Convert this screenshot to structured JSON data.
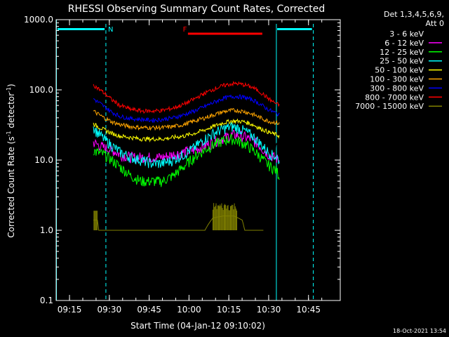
{
  "chart_data": {
    "type": "line",
    "title": "RHESSI Observing Summary Count Rates, Corrected",
    "xlabel": "Start Time (04-Jan-12 09:10:02)",
    "ylabel_main": "Corrected Count Rate (s",
    "ylabel_sup1": "-1",
    "ylabel_mid": " detector",
    "ylabel_sup2": "-1",
    "ylabel_end": ")",
    "y_scale": "log",
    "ylim": [
      0.1,
      1000
    ],
    "xlim_minutes": [
      9.96,
      46.96
    ],
    "x_ticks": [
      {
        "m": 15,
        "label": "09:15"
      },
      {
        "m": 30,
        "label": "09:30"
      },
      {
        "m": 45,
        "label": "09:45"
      },
      {
        "m": 60,
        "label": "10:00"
      },
      {
        "m": 75,
        "label": "10:15"
      },
      {
        "m": 90,
        "label": "10:30"
      },
      {
        "m": 105,
        "label": "10:45"
      }
    ],
    "y_ticks": [
      {
        "v": 1000,
        "label": "1000.0"
      },
      {
        "v": 100,
        "label": "100.0"
      },
      {
        "v": 10,
        "label": "10.0"
      },
      {
        "v": 1,
        "label": "1.0"
      },
      {
        "v": 0.1,
        "label": "0.1"
      }
    ],
    "legend": {
      "position": "top-right",
      "header1": "Det 1,3,4,5,6,9,",
      "header2": "Att 0"
    },
    "timestamp": "18-Oct-2021 13:54",
    "night_intervals": [
      {
        "start": 9.93,
        "end": 9.93
      },
      {
        "start": 10.3,
        "end": 10.3
      }
    ],
    "bar_labels": [
      {
        "label": "N",
        "minutes": 30.5
      },
      {
        "label": "F",
        "minutes": 59.5
      }
    ],
    "series": [
      {
        "name": "3 - 6 keV",
        "color": "#000000",
        "values": [
          [
            24,
            20
          ],
          [
            25,
            19
          ],
          [
            28,
            17
          ],
          [
            31,
            16
          ],
          [
            34,
            15
          ],
          [
            38,
            15
          ],
          [
            42,
            16
          ],
          [
            46,
            16
          ],
          [
            50,
            16
          ],
          [
            54,
            17
          ],
          [
            58,
            19
          ],
          [
            62,
            21
          ],
          [
            65,
            23
          ],
          [
            68,
            24
          ],
          [
            71,
            24
          ],
          [
            74,
            25
          ],
          [
            77,
            26
          ],
          [
            80,
            25
          ],
          [
            83,
            24
          ],
          [
            86,
            22
          ],
          [
            88,
            18
          ],
          [
            90,
            16
          ],
          [
            92,
            15
          ],
          [
            94,
            15
          ]
        ]
      },
      {
        "name": "6 - 12 keV",
        "color": "#ff00ff",
        "values": [
          [
            24,
            18
          ],
          [
            25,
            17
          ],
          [
            28,
            15
          ],
          [
            31,
            14
          ],
          [
            34,
            12
          ],
          [
            38,
            11
          ],
          [
            42,
            11
          ],
          [
            46,
            11
          ],
          [
            50,
            11
          ],
          [
            54,
            12
          ],
          [
            58,
            13
          ],
          [
            62,
            14
          ],
          [
            66,
            16
          ],
          [
            69,
            18
          ],
          [
            72,
            20
          ],
          [
            75,
            22
          ],
          [
            77,
            23
          ],
          [
            80,
            22
          ],
          [
            83,
            20
          ],
          [
            86,
            17
          ],
          [
            88,
            14
          ],
          [
            90,
            12
          ],
          [
            92,
            11
          ],
          [
            94,
            10
          ]
        ]
      },
      {
        "name": "12 - 25 keV",
        "color": "#00ff00",
        "values": [
          [
            24,
            14
          ],
          [
            25,
            13
          ],
          [
            28,
            12
          ],
          [
            31,
            10
          ],
          [
            34,
            8
          ],
          [
            38,
            6
          ],
          [
            42,
            5
          ],
          [
            46,
            5
          ],
          [
            50,
            5
          ],
          [
            54,
            6
          ],
          [
            58,
            8
          ],
          [
            62,
            11
          ],
          [
            66,
            14
          ],
          [
            70,
            17
          ],
          [
            73,
            19
          ],
          [
            76,
            20
          ],
          [
            78,
            19
          ],
          [
            81,
            17
          ],
          [
            84,
            14
          ],
          [
            87,
            11
          ],
          [
            89,
            9
          ],
          [
            91,
            8
          ],
          [
            93,
            7
          ],
          [
            94,
            6
          ]
        ]
      },
      {
        "name": "25 - 50 keV",
        "color": "#00ffff",
        "values": [
          [
            24,
            30
          ],
          [
            25,
            26
          ],
          [
            28,
            20
          ],
          [
            31,
            16
          ],
          [
            34,
            13
          ],
          [
            38,
            11
          ],
          [
            42,
            10
          ],
          [
            46,
            9
          ],
          [
            50,
            9
          ],
          [
            54,
            10
          ],
          [
            58,
            12
          ],
          [
            62,
            15
          ],
          [
            66,
            20
          ],
          [
            70,
            25
          ],
          [
            73,
            28
          ],
          [
            76,
            30
          ],
          [
            78,
            29
          ],
          [
            81,
            26
          ],
          [
            84,
            22
          ],
          [
            87,
            17
          ],
          [
            89,
            14
          ],
          [
            91,
            12
          ],
          [
            93,
            11
          ],
          [
            94,
            10
          ]
        ]
      },
      {
        "name": "50 - 100 keV",
        "color": "#ffff00",
        "values": [
          [
            24,
            33
          ],
          [
            25,
            31
          ],
          [
            28,
            27
          ],
          [
            31,
            24
          ],
          [
            34,
            22
          ],
          [
            38,
            21
          ],
          [
            42,
            20
          ],
          [
            46,
            20
          ],
          [
            50,
            20
          ],
          [
            54,
            21
          ],
          [
            58,
            22
          ],
          [
            62,
            24
          ],
          [
            66,
            27
          ],
          [
            70,
            31
          ],
          [
            73,
            34
          ],
          [
            76,
            36
          ],
          [
            78,
            36
          ],
          [
            81,
            35
          ],
          [
            84,
            32
          ],
          [
            87,
            28
          ],
          [
            89,
            26
          ],
          [
            91,
            24
          ],
          [
            93,
            23
          ],
          [
            94,
            22
          ]
        ]
      },
      {
        "name": "100 - 300 keV",
        "color": "#ffa500",
        "values": [
          [
            24,
            50
          ],
          [
            25,
            47
          ],
          [
            28,
            40
          ],
          [
            31,
            35
          ],
          [
            34,
            32
          ],
          [
            38,
            30
          ],
          [
            42,
            29
          ],
          [
            46,
            29
          ],
          [
            50,
            29
          ],
          [
            54,
            30
          ],
          [
            58,
            32
          ],
          [
            62,
            36
          ],
          [
            66,
            40
          ],
          [
            70,
            45
          ],
          [
            73,
            49
          ],
          [
            76,
            51
          ],
          [
            78,
            51
          ],
          [
            81,
            49
          ],
          [
            84,
            45
          ],
          [
            87,
            40
          ],
          [
            89,
            37
          ],
          [
            91,
            35
          ],
          [
            93,
            34
          ],
          [
            94,
            33
          ]
        ]
      },
      {
        "name": "300 - 800 keV",
        "color": "#0000ff",
        "values": [
          [
            24,
            75
          ],
          [
            25,
            70
          ],
          [
            28,
            58
          ],
          [
            31,
            48
          ],
          [
            34,
            42
          ],
          [
            38,
            39
          ],
          [
            42,
            38
          ],
          [
            46,
            37
          ],
          [
            50,
            38
          ],
          [
            54,
            40
          ],
          [
            58,
            44
          ],
          [
            62,
            50
          ],
          [
            66,
            58
          ],
          [
            70,
            68
          ],
          [
            73,
            76
          ],
          [
            76,
            80
          ],
          [
            78,
            81
          ],
          [
            81,
            78
          ],
          [
            84,
            72
          ],
          [
            87,
            62
          ],
          [
            89,
            55
          ],
          [
            91,
            50
          ],
          [
            93,
            46
          ],
          [
            94,
            44
          ]
        ]
      },
      {
        "name": "800 - 7000 keV",
        "color": "#ff0000",
        "values": [
          [
            24,
            120
          ],
          [
            25,
            110
          ],
          [
            28,
            90
          ],
          [
            31,
            72
          ],
          [
            34,
            60
          ],
          [
            38,
            53
          ],
          [
            42,
            50
          ],
          [
            46,
            50
          ],
          [
            50,
            51
          ],
          [
            54,
            55
          ],
          [
            58,
            62
          ],
          [
            62,
            74
          ],
          [
            66,
            90
          ],
          [
            70,
            105
          ],
          [
            73,
            115
          ],
          [
            76,
            122
          ],
          [
            78,
            123
          ],
          [
            81,
            118
          ],
          [
            84,
            108
          ],
          [
            87,
            92
          ],
          [
            89,
            80
          ],
          [
            91,
            70
          ],
          [
            93,
            63
          ],
          [
            94,
            60
          ]
        ]
      },
      {
        "name": "7000 - 15000 keV",
        "color": "#808000",
        "values": [
          [
            24,
            1.4
          ],
          [
            25.5,
            1.4
          ],
          [
            26,
            1.0
          ],
          [
            40,
            1.0
          ],
          [
            58,
            1.0
          ],
          [
            65,
            1.0
          ],
          [
            66,
            1.0
          ],
          [
            69,
            1.5
          ],
          [
            73,
            1.6
          ],
          [
            77,
            1.6
          ],
          [
            80,
            1.4
          ],
          [
            81,
            1.0
          ],
          [
            88,
            1.0
          ]
        ]
      }
    ]
  }
}
